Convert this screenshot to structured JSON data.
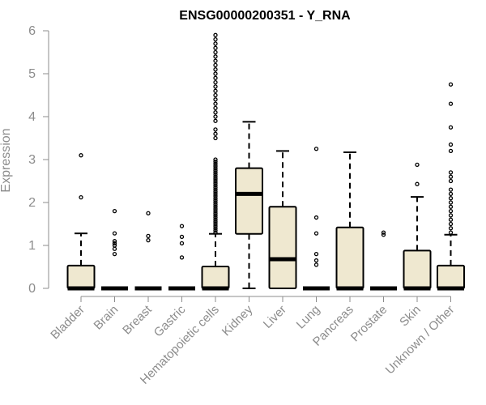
{
  "chart_data": {
    "type": "boxplot",
    "title": "ENSG00000200351 - Y_RNA",
    "ylabel": "Expression",
    "xlabel": "",
    "ylim": [
      0,
      6
    ],
    "yticks": [
      0,
      1,
      2,
      3,
      4,
      5,
      6
    ],
    "box_fill": "#efe8d0",
    "categories": [
      "Bladder",
      "Brain",
      "Breast",
      "Gastric",
      "Hematopoietic cells",
      "Kidney",
      "Liver",
      "Lung",
      "Pancreas",
      "Prostate",
      "Skin",
      "Unknown / Other"
    ],
    "boxes": [
      {
        "q1": 0,
        "median": 0,
        "q3": 0.53,
        "whisker_low": 0,
        "whisker_high": 1.28,
        "outliers": [
          2.12,
          3.1
        ]
      },
      {
        "q1": 0,
        "median": 0,
        "q3": 0,
        "whisker_low": 0,
        "whisker_high": 0,
        "outliers": [
          0.8,
          0.92,
          1.0,
          1.05,
          1.1,
          1.28,
          1.8
        ]
      },
      {
        "q1": 0,
        "median": 0,
        "q3": 0,
        "whisker_low": 0,
        "whisker_high": 0,
        "outliers": [
          1.12,
          1.22,
          1.75
        ]
      },
      {
        "q1": 0,
        "median": 0,
        "q3": 0,
        "whisker_low": 0,
        "whisker_high": 0,
        "outliers": [
          0.72,
          1.05,
          1.2,
          1.45
        ]
      },
      {
        "q1": 0,
        "median": 0,
        "q3": 0.51,
        "whisker_low": 0,
        "whisker_high": 1.27,
        "outliers": [
          1.3,
          1.35,
          1.4,
          1.45,
          1.5,
          1.55,
          1.6,
          1.65,
          1.7,
          1.75,
          1.8,
          1.85,
          1.9,
          1.95,
          2.0,
          2.05,
          2.1,
          2.15,
          2.2,
          2.25,
          2.3,
          2.35,
          2.4,
          2.45,
          2.5,
          2.55,
          2.6,
          2.65,
          2.7,
          2.75,
          2.8,
          2.85,
          2.9,
          2.95,
          3.0,
          3.5,
          3.6,
          3.7,
          3.9,
          4.0,
          4.1,
          4.2,
          4.3,
          4.4,
          4.5,
          4.6,
          4.7,
          4.8,
          4.9,
          5.0,
          5.1,
          5.2,
          5.3,
          5.4,
          5.5,
          5.6,
          5.7,
          5.8,
          5.9
        ]
      },
      {
        "q1": 1.27,
        "median": 2.2,
        "q3": 2.8,
        "whisker_low": 0,
        "whisker_high": 3.88,
        "outliers": []
      },
      {
        "q1": 0,
        "median": 0.68,
        "q3": 1.9,
        "whisker_low": 0,
        "whisker_high": 3.2,
        "outliers": []
      },
      {
        "q1": 0,
        "median": 0,
        "q3": 0,
        "whisker_low": 0,
        "whisker_high": 0,
        "outliers": [
          0.55,
          0.65,
          0.8,
          1.28,
          1.65,
          3.25
        ]
      },
      {
        "q1": 0,
        "median": 0,
        "q3": 1.42,
        "whisker_low": 0,
        "whisker_high": 3.17,
        "outliers": []
      },
      {
        "q1": 0,
        "median": 0,
        "q3": 0,
        "whisker_low": 0,
        "whisker_high": 0,
        "outliers": [
          1.25,
          1.3
        ]
      },
      {
        "q1": 0,
        "median": 0,
        "q3": 0.88,
        "whisker_low": 0,
        "whisker_high": 2.13,
        "outliers": [
          2.43,
          2.88
        ]
      },
      {
        "q1": 0,
        "median": 0,
        "q3": 0.53,
        "whisker_low": 0,
        "whisker_high": 1.25,
        "outliers": [
          1.3,
          1.4,
          1.5,
          1.6,
          1.7,
          1.8,
          1.9,
          2.0,
          2.1,
          2.2,
          2.3,
          2.5,
          2.6,
          2.7,
          3.2,
          3.35,
          3.75,
          4.3,
          4.75
        ]
      }
    ]
  }
}
